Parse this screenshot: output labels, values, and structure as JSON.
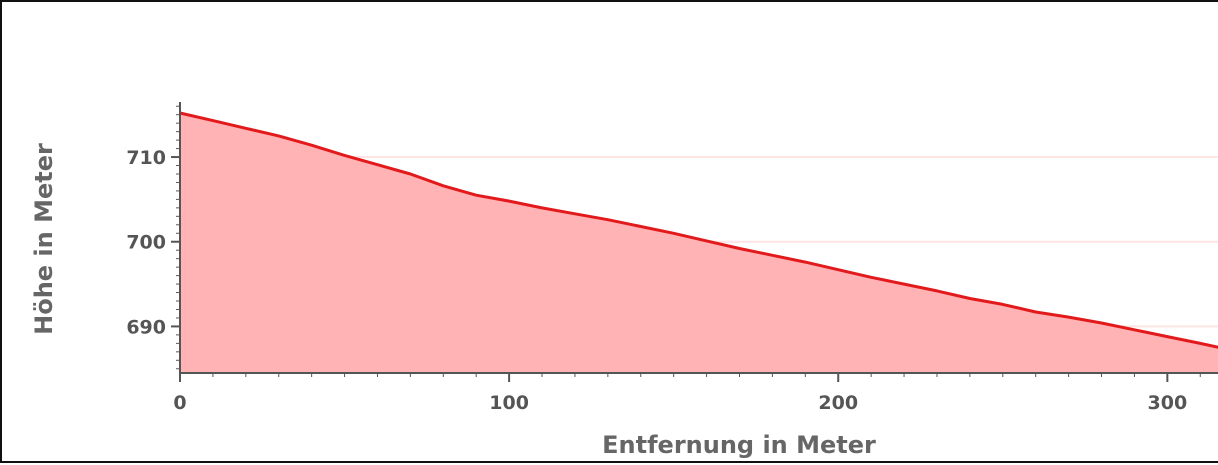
{
  "chart_data": {
    "type": "area",
    "xlabel": "Entfernung in Meter",
    "ylabel": "Höhe in Meter",
    "xlim": [
      0,
      316
    ],
    "ylim": [
      684.5,
      716.5
    ],
    "x_ticks": [
      0,
      100,
      200,
      300
    ],
    "y_ticks": [
      690,
      700,
      710
    ],
    "grid": "horizontal",
    "colors": {
      "line": "#e31a1c",
      "fill": "#ffb3b5",
      "grid": "#ffe4e4",
      "axis": "#555555"
    },
    "series": [
      {
        "x": [
          0,
          10,
          20,
          30,
          40,
          50,
          60,
          70,
          80,
          90,
          100,
          110,
          120,
          130,
          140,
          150,
          160,
          170,
          180,
          190,
          200,
          210,
          220,
          230,
          240,
          250,
          260,
          270,
          280,
          290,
          300,
          310,
          316
        ],
        "y": [
          715.2,
          714.3,
          713.4,
          712.5,
          711.4,
          710.2,
          709.1,
          708.0,
          706.6,
          705.5,
          704.8,
          704.0,
          703.3,
          702.6,
          701.8,
          701.0,
          700.1,
          699.2,
          698.4,
          697.6,
          696.7,
          695.8,
          695.0,
          694.2,
          693.3,
          692.6,
          691.7,
          691.1,
          690.4,
          689.6,
          688.8,
          688.0,
          687.5
        ]
      }
    ]
  }
}
